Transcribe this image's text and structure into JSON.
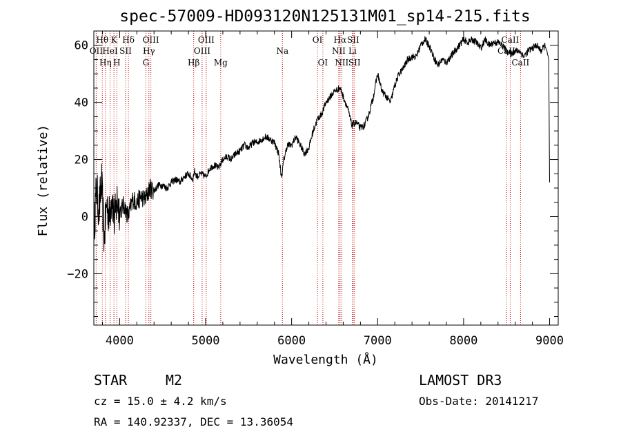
{
  "chart_data": {
    "type": "line",
    "title": "spec-57009-HD093120N125131M01_sp14-215.fits",
    "xlabel": "Wavelength (Å)",
    "ylabel": "Flux (relative)",
    "xlim": [
      3700,
      9100
    ],
    "ylim": [
      -38,
      65
    ],
    "x_ticks": [
      4000,
      5000,
      6000,
      7000,
      8000,
      9000
    ],
    "x_tick_labels": [
      "4000",
      "5000",
      "6000",
      "7000",
      "8000",
      "9000"
    ],
    "y_ticks": [
      -20,
      0,
      20,
      40,
      60
    ],
    "y_tick_labels": [
      "−20",
      "0",
      "20",
      "40",
      "60"
    ],
    "series": [
      {
        "name": "Flux",
        "x": [
          3700,
          3730,
          3760,
          3790,
          3820,
          3850,
          3880,
          3910,
          3940,
          3970,
          4000,
          4050,
          4100,
          4150,
          4200,
          4250,
          4300,
          4350,
          4400,
          4450,
          4500,
          4550,
          4600,
          4650,
          4700,
          4750,
          4800,
          4850,
          4870,
          4900,
          4950,
          5000,
          5050,
          5100,
          5150,
          5200,
          5250,
          5300,
          5350,
          5400,
          5450,
          5500,
          5550,
          5600,
          5650,
          5700,
          5750,
          5800,
          5850,
          5880,
          5893,
          5910,
          5950,
          6000,
          6050,
          6100,
          6150,
          6200,
          6250,
          6300,
          6350,
          6400,
          6450,
          6500,
          6563,
          6600,
          6650,
          6700,
          6750,
          6800,
          6850,
          6900,
          6950,
          7000,
          7050,
          7100,
          7150,
          7200,
          7250,
          7300,
          7350,
          7400,
          7450,
          7500,
          7550,
          7600,
          7650,
          7700,
          7750,
          7800,
          7850,
          7900,
          7950,
          8000,
          8050,
          8100,
          8150,
          8200,
          8250,
          8300,
          8350,
          8400,
          8450,
          8500,
          8550,
          8600,
          8650,
          8700,
          8750,
          8800,
          8850,
          8900,
          8950,
          8990,
          9000
        ],
        "values": [
          -5,
          10,
          2,
          12,
          -8,
          5,
          0,
          8,
          -2,
          6,
          2,
          4,
          0,
          6,
          5,
          7,
          6,
          10,
          9,
          11,
          11,
          10,
          12,
          13,
          12,
          14,
          15,
          13,
          16,
          14,
          15,
          14,
          17,
          18,
          17,
          20,
          21,
          20,
          22,
          23,
          25,
          24,
          26,
          26,
          27,
          28,
          27,
          26,
          22,
          14,
          16,
          20,
          25,
          25,
          28,
          25,
          22,
          24,
          30,
          34,
          36,
          40,
          42,
          44,
          45,
          42,
          38,
          32,
          33,
          31,
          32,
          36,
          42,
          50,
          44,
          42,
          40,
          46,
          50,
          52,
          55,
          56,
          56,
          60,
          62,
          60,
          56,
          53,
          55,
          54,
          56,
          58,
          60,
          62,
          61,
          62,
          61,
          59,
          62,
          60,
          61,
          61,
          60,
          58,
          57,
          58,
          58,
          56,
          58,
          59,
          60,
          58,
          60,
          55,
          12
        ]
      }
    ],
    "lines": [
      {
        "name": "OII",
        "x": 3727,
        "row": 2,
        "text": "OII"
      },
      {
        "name": "Hθ",
        "x": 3798,
        "row": 1,
        "text": "Hθ"
      },
      {
        "name": "Hη",
        "x": 3835,
        "row": 3,
        "text": "Hη"
      },
      {
        "name": "HeI",
        "x": 3889,
        "row": 2,
        "text": "HeI"
      },
      {
        "name": "K",
        "x": 3934,
        "row": 1,
        "text": "K"
      },
      {
        "name": "H",
        "x": 3968,
        "row": 3,
        "text": "H"
      },
      {
        "name": "SII",
        "x": 4069,
        "row": 2,
        "text": "SII"
      },
      {
        "name": "Hδ",
        "x": 4102,
        "row": 1,
        "text": "Hδ"
      },
      {
        "name": "OIII-4363",
        "x": 4363,
        "row": 1,
        "text": "OIII"
      },
      {
        "name": "Hγ",
        "x": 4340,
        "row": 2,
        "text": "Hγ"
      },
      {
        "name": "G",
        "x": 4305,
        "row": 3,
        "text": "G"
      },
      {
        "name": "Hβ",
        "x": 4861,
        "row": 3,
        "text": "Hβ"
      },
      {
        "name": "OIII-4959",
        "x": 4959,
        "row": 2,
        "text": "OIII"
      },
      {
        "name": "OIII-5007",
        "x": 5007,
        "row": 1,
        "text": "OIII"
      },
      {
        "name": "Mg",
        "x": 5175,
        "row": 3,
        "text": "Mg"
      },
      {
        "name": "Na",
        "x": 5893,
        "row": 2,
        "text": "Na"
      },
      {
        "name": "OI-6300",
        "x": 6300,
        "row": 1,
        "text": "OI"
      },
      {
        "name": "OI-6363",
        "x": 6363,
        "row": 3,
        "text": "OI"
      },
      {
        "name": "NII-6548",
        "x": 6548,
        "row": 2,
        "text": "NII"
      },
      {
        "name": "Hα",
        "x": 6563,
        "row": 1,
        "text": "Hα"
      },
      {
        "name": "NII-6583",
        "x": 6583,
        "row": 3,
        "text": "NII"
      },
      {
        "name": "Li",
        "x": 6708,
        "row": 2,
        "text": "Li"
      },
      {
        "name": "SII-6716",
        "x": 6716,
        "row": 1,
        "text": "SII"
      },
      {
        "name": "SII-6731",
        "x": 6731,
        "row": 3,
        "text": "SII"
      },
      {
        "name": "CaII-8498",
        "x": 8498,
        "row": 2,
        "text": "CaII"
      },
      {
        "name": "CaII-8542",
        "x": 8542,
        "row": 1,
        "text": "CaII"
      },
      {
        "name": "CaII-8662",
        "x": 8662,
        "row": 3,
        "text": "CaII"
      }
    ]
  },
  "info": {
    "class_label": "STAR",
    "subclass": "M2",
    "survey": "LAMOST DR3",
    "cz": "cz = 15.0 ± 4.2 km/s",
    "obs_date": "Obs-Date: 20141217",
    "coords": "RA = 140.92337, DEC =  13.36054"
  },
  "colors": {
    "line_marker": "#cc0000",
    "spectrum": "#000000"
  }
}
